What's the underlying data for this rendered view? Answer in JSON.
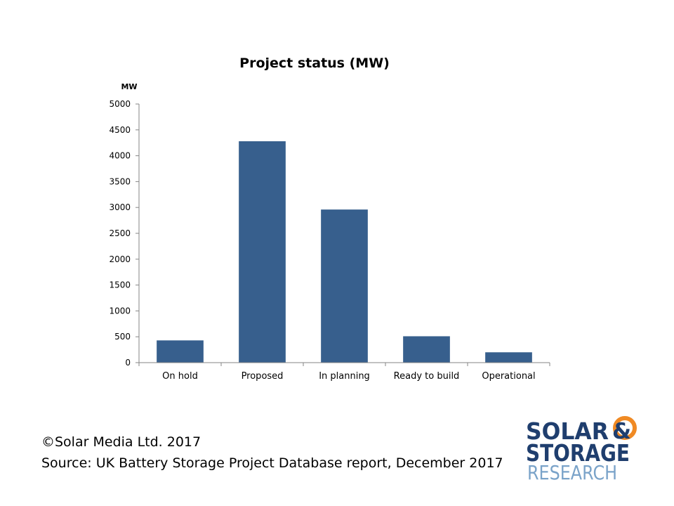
{
  "chart_data": {
    "type": "bar",
    "title": "Project status (MW)",
    "unit_label": "MW",
    "xlabel": "",
    "ylabel": "",
    "categories": [
      "On hold",
      "Proposed",
      "In planning",
      "Ready to build",
      "Operational"
    ],
    "values": [
      430,
      4280,
      2960,
      510,
      200
    ],
    "ylim": [
      0,
      5000
    ],
    "yticks": [
      0,
      500,
      1000,
      1500,
      2000,
      2500,
      3000,
      3500,
      4000,
      4500,
      5000
    ],
    "grid": false,
    "legend": "none",
    "bar_color": "#375f8d"
  },
  "footer": {
    "copyright": "©Solar Media Ltd. 2017",
    "source": "Source: UK Battery Storage Project Database report, December 2017"
  },
  "logo": {
    "line1": "SOLAR",
    "ampersand": "&",
    "line2": "STORAGE",
    "line3": "RESEARCH",
    "colors": {
      "navy": "#1f3e6e",
      "orange": "#f08a24",
      "blue": "#7aa3c9"
    }
  }
}
